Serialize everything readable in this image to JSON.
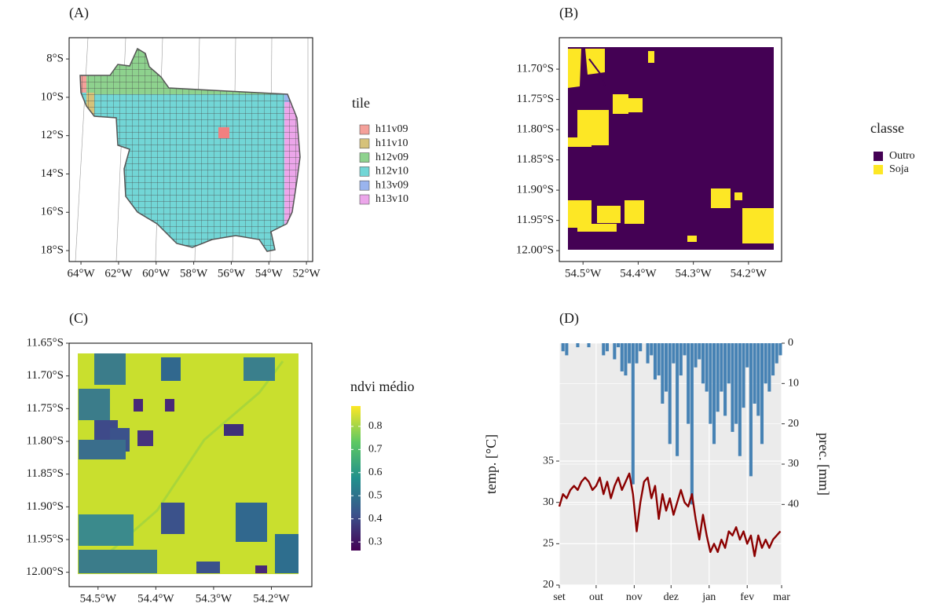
{
  "chart_data": [
    {
      "type": "map",
      "title": "(A)",
      "frame": true,
      "xlim": [
        -64.63,
        -51.67
      ],
      "ylim": [
        -18.57,
        -6.89
      ],
      "xticks": [
        {
          "value": -64,
          "label": "64°W"
        },
        {
          "value": -62,
          "label": "62°W"
        },
        {
          "value": -60,
          "label": "60°W"
        },
        {
          "value": -58,
          "label": "58°W"
        },
        {
          "value": -56,
          "label": "56°W"
        },
        {
          "value": -54,
          "label": "54°W"
        },
        {
          "value": -52,
          "label": "52°W"
        }
      ],
      "yticks": [
        {
          "value": -8,
          "label": "8°S"
        },
        {
          "value": -10,
          "label": "10°S"
        },
        {
          "value": -12,
          "label": "12°S"
        },
        {
          "value": -14,
          "label": "14°S"
        },
        {
          "value": -16,
          "label": "16°S"
        },
        {
          "value": -18,
          "label": "18°S"
        }
      ],
      "legend": {
        "title": "tile",
        "entries": [
          {
            "label": "h11v09",
            "color": "#f4a09a"
          },
          {
            "label": "h11v10",
            "color": "#d6c27a"
          },
          {
            "label": "h12v09",
            "color": "#8ed28e"
          },
          {
            "label": "h12v10",
            "color": "#72d6d6"
          },
          {
            "label": "h13v09",
            "color": "#9ab4ee"
          },
          {
            "label": "h13v10",
            "color": "#eca6ea"
          }
        ]
      }
    },
    {
      "type": "raster",
      "title": "(B)",
      "frame": true,
      "xlim": [
        -54.543,
        -54.14
      ],
      "ylim": [
        -12.018,
        -11.648
      ],
      "xticks": [
        {
          "value": -54.5,
          "label": "54.5°W"
        },
        {
          "value": -54.4,
          "label": "54.4°W"
        },
        {
          "value": -54.3,
          "label": "54.3°W"
        },
        {
          "value": -54.2,
          "label": "54.2°W"
        }
      ],
      "yticks": [
        {
          "value": -11.7,
          "label": "11.70°S"
        },
        {
          "value": -11.75,
          "label": "11.75°S"
        },
        {
          "value": -11.8,
          "label": "11.80°S"
        },
        {
          "value": -11.85,
          "label": "11.85°S"
        },
        {
          "value": -11.9,
          "label": "11.90°S"
        },
        {
          "value": -11.95,
          "label": "11.95°S"
        },
        {
          "value": -12.0,
          "label": "12.00°S"
        }
      ],
      "legend": {
        "title": "classe",
        "entries": [
          {
            "label": "Outro",
            "color": "#440154"
          },
          {
            "label": "Soja",
            "color": "#fde725"
          }
        ]
      }
    },
    {
      "type": "raster",
      "title": "(C)",
      "frame": true,
      "xlim": [
        -54.55,
        -54.13
      ],
      "ylim": [
        -12.022,
        -11.65
      ],
      "xticks": [
        {
          "value": -54.5,
          "label": "54.5°W"
        },
        {
          "value": -54.4,
          "label": "54.4°W"
        },
        {
          "value": -54.3,
          "label": "54.3°W"
        },
        {
          "value": -54.2,
          "label": "54.2°W"
        }
      ],
      "yticks": [
        {
          "value": -11.65,
          "label": "11.65°S"
        },
        {
          "value": -11.7,
          "label": "11.70°S"
        },
        {
          "value": -11.75,
          "label": "11.75°S"
        },
        {
          "value": -11.8,
          "label": "11.80°S"
        },
        {
          "value": -11.85,
          "label": "11.85°S"
        },
        {
          "value": -11.9,
          "label": "11.90°S"
        },
        {
          "value": -11.95,
          "label": "11.95°S"
        },
        {
          "value": -12.0,
          "label": "12.00°S"
        }
      ],
      "colorbar": {
        "title": "ndvi médio",
        "lim": [
          0.263,
          0.888
        ],
        "ticks": [
          0.3,
          0.4,
          0.5,
          0.6,
          0.7,
          0.8
        ],
        "colors": [
          "#440154",
          "#3b528b",
          "#21908c",
          "#5dc863",
          "#fde725"
        ]
      }
    },
    {
      "type": "combo",
      "title": "(D)",
      "grid": true,
      "background": "#ebebeb",
      "ylabel": "temp. [°C]",
      "y2label": "prec. [mm]",
      "y2_reversed": true,
      "x": [
        0,
        3,
        6,
        9,
        12,
        15,
        18,
        21,
        24,
        27,
        30,
        33,
        36,
        39,
        42,
        45,
        48,
        51,
        54,
        57,
        60,
        63,
        66,
        69,
        72,
        75,
        78,
        81,
        84,
        87,
        90,
        93,
        96,
        99,
        102,
        105,
        108,
        111,
        114,
        117,
        120,
        123,
        126,
        129,
        132,
        135,
        138,
        141,
        144,
        147,
        150,
        153,
        156,
        159,
        162,
        165,
        168,
        171,
        174,
        177,
        180
      ],
      "xlim": [
        0,
        181
      ],
      "xticks": [
        {
          "value": 0,
          "label": "set"
        },
        {
          "value": 30,
          "label": "out"
        },
        {
          "value": 61,
          "label": "nov"
        },
        {
          "value": 91,
          "label": "dez"
        },
        {
          "value": 122,
          "label": "jan"
        },
        {
          "value": 153,
          "label": "fev"
        },
        {
          "value": 181,
          "label": "mar"
        }
      ],
      "ylim": [
        20,
        49.25
      ],
      "yticks": [
        20,
        25,
        30,
        35
      ],
      "y2lim": [
        0,
        60
      ],
      "y2ticks": [
        0,
        10,
        20,
        30,
        40
      ],
      "series": [
        {
          "type": "bar",
          "axis": "y2",
          "color": "#4682b4",
          "values": [
            0,
            2,
            3,
            0,
            0,
            1,
            0,
            0,
            1,
            0,
            0,
            0,
            3,
            2,
            0,
            4,
            1,
            7,
            8,
            5,
            35,
            5,
            2,
            0,
            5,
            3,
            9,
            8,
            15,
            12,
            25,
            5,
            28,
            8,
            3,
            20,
            40,
            6,
            4,
            10,
            12,
            20,
            25,
            17,
            12,
            18,
            10,
            22,
            20,
            28,
            16,
            6,
            33,
            15,
            18,
            25,
            10,
            12,
            8,
            5,
            3
          ]
        },
        {
          "type": "line",
          "color": "#8b0000",
          "values": [
            29.5,
            31,
            30.5,
            31.5,
            32,
            31.5,
            32.5,
            33,
            32.5,
            31.5,
            32,
            33,
            31,
            32.5,
            30.5,
            32,
            33,
            31.5,
            32.5,
            33.5,
            31,
            26.5,
            30,
            32.5,
            33,
            30.5,
            32,
            28,
            31,
            29,
            30.5,
            28.5,
            30,
            31.5,
            30,
            29.5,
            31,
            28,
            25.5,
            28.5,
            26,
            24,
            25,
            24,
            25.5,
            24.5,
            26.5,
            26,
            27,
            25.5,
            26.5,
            25,
            26,
            23.5,
            26,
            24.5,
            25.5,
            24.5,
            25.5,
            26,
            26.5
          ]
        }
      ]
    }
  ]
}
